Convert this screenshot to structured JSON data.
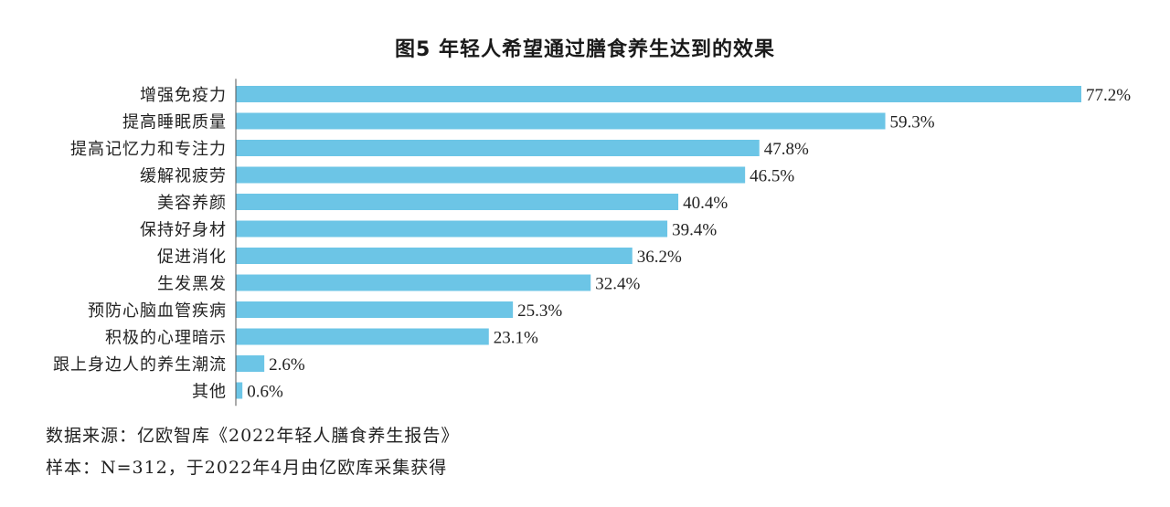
{
  "chart_data": {
    "type": "bar",
    "orientation": "horizontal",
    "title": "图5  年轻人希望通过膳食养生达到的效果",
    "categories": [
      "增强免疫力",
      "提高睡眠质量",
      "提高记忆力和专注力",
      "缓解视疲劳",
      "美容养颜",
      "保持好身材",
      "促进消化",
      "生发黑发",
      "预防心脑血管疾病",
      "积极的心理暗示",
      "跟上身边人的养生潮流",
      "其他"
    ],
    "values": [
      77.2,
      59.3,
      47.8,
      46.5,
      40.4,
      39.4,
      36.2,
      32.4,
      25.3,
      23.1,
      2.6,
      0.6
    ],
    "value_labels": [
      "77.2%",
      "59.3%",
      "47.8%",
      "46.5%",
      "40.4%",
      "39.4%",
      "36.2%",
      "32.4%",
      "25.3%",
      "23.1%",
      "2.6%",
      "0.6%"
    ],
    "unit": "%",
    "xlim": [
      0,
      77.2
    ],
    "bar_color": "#6cc5e6",
    "axis_color": "#555555",
    "grid": false,
    "legend": "none"
  },
  "footnotes": {
    "source": "数据来源：亿欧智库《2022年轻人膳食养生报告》",
    "sample": "样本：N=312，于2022年4月由亿欧库采集获得"
  }
}
